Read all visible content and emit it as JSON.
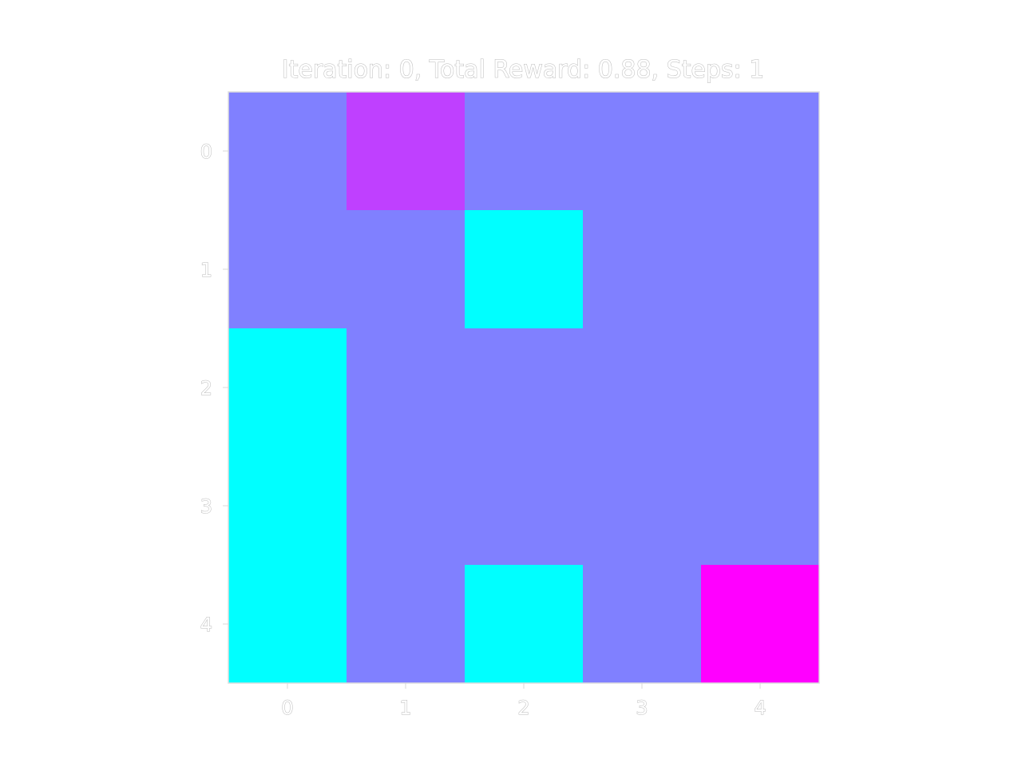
{
  "chart_data": {
    "type": "heatmap",
    "title": "Iteration: 0, Total Reward: 0.88, Steps: 1",
    "xlabel": "",
    "ylabel": "",
    "x_ticks": [
      "0",
      "1",
      "2",
      "3",
      "4"
    ],
    "y_ticks": [
      "0",
      "1",
      "2",
      "3",
      "4"
    ],
    "grid": false,
    "values": [
      [
        0.5,
        0.75,
        0.5,
        0.5,
        0.5
      ],
      [
        0.5,
        0.5,
        0.0,
        0.5,
        0.5
      ],
      [
        0.0,
        0.5,
        0.5,
        0.5,
        0.5
      ],
      [
        0.0,
        0.5,
        0.5,
        0.5,
        0.5
      ],
      [
        0.0,
        0.5,
        0.0,
        0.5,
        1.0
      ]
    ],
    "colormap": "cool",
    "colormap_stops": [
      "#00ffff",
      "#ff00ff"
    ],
    "value_range": [
      0,
      1
    ]
  }
}
